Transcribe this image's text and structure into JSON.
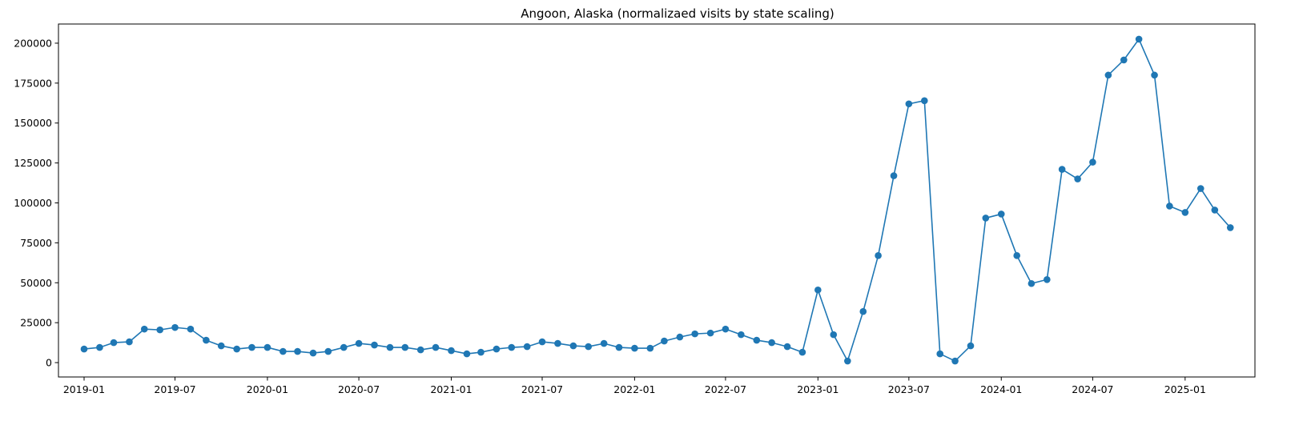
{
  "chart_data": {
    "type": "line",
    "title": "Angoon, Alaska (normalizaed visits by state scaling)",
    "xlabel": "",
    "ylabel": "",
    "x_range": [
      "2018-11-11",
      "2025-05-20"
    ],
    "ylim": [
      -9000,
      212000
    ],
    "grid": false,
    "legend": "none",
    "color": "#1f77b4",
    "marker": "circle",
    "x_ticks": [
      "2019-01",
      "2019-07",
      "2020-01",
      "2020-07",
      "2021-01",
      "2021-07",
      "2022-01",
      "2022-07",
      "2023-01",
      "2023-07",
      "2024-01",
      "2024-07",
      "2025-01"
    ],
    "y_ticks": [
      0,
      25000,
      50000,
      75000,
      100000,
      125000,
      150000,
      175000,
      200000
    ],
    "series": [
      {
        "x": [
          "2019-01",
          "2019-02",
          "2019-03",
          "2019-04",
          "2019-05",
          "2019-06",
          "2019-07",
          "2019-08",
          "2019-09",
          "2019-10",
          "2019-11",
          "2019-12",
          "2020-01",
          "2020-02",
          "2020-03",
          "2020-04",
          "2020-05",
          "2020-06",
          "2020-07",
          "2020-08",
          "2020-09",
          "2020-10",
          "2020-11",
          "2020-12",
          "2021-01",
          "2021-02",
          "2021-03",
          "2021-04",
          "2021-05",
          "2021-06",
          "2021-07",
          "2021-08",
          "2021-09",
          "2021-10",
          "2021-11",
          "2021-12",
          "2022-01",
          "2022-02",
          "2022-03",
          "2022-04",
          "2022-05",
          "2022-06",
          "2022-07",
          "2022-08",
          "2022-09",
          "2022-10",
          "2022-11",
          "2022-12",
          "2023-01",
          "2023-02",
          "2023-03",
          "2023-04",
          "2023-05",
          "2023-06",
          "2023-07",
          "2023-08",
          "2023-09",
          "2023-10",
          "2023-11",
          "2023-12",
          "2024-01",
          "2024-02",
          "2024-03",
          "2024-04",
          "2024-05",
          "2024-06",
          "2024-07",
          "2024-08",
          "2024-09",
          "2024-10",
          "2024-11",
          "2024-12",
          "2025-01",
          "2025-02",
          "2025-03",
          "2025-04"
        ],
        "values": [
          8500,
          9500,
          12500,
          13000,
          21000,
          20500,
          22000,
          21000,
          14000,
          10500,
          8500,
          9500,
          9500,
          7000,
          7000,
          6000,
          7000,
          9500,
          12000,
          11000,
          9500,
          9500,
          8000,
          9500,
          7500,
          5500,
          6500,
          8500,
          9500,
          10000,
          13000,
          12000,
          10500,
          10000,
          12000,
          9500,
          9000,
          9000,
          13500,
          16000,
          18000,
          18500,
          21000,
          17500,
          14000,
          12500,
          10000,
          6500,
          45500,
          17500,
          1000,
          32000,
          67000,
          117000,
          162000,
          164000,
          5500,
          1000,
          10500,
          90500,
          93000,
          67000,
          49500,
          52000,
          121000,
          115000,
          125500,
          180000,
          189500,
          202500,
          180000,
          98000,
          94000,
          109000,
          95500,
          84500
        ]
      }
    ]
  }
}
